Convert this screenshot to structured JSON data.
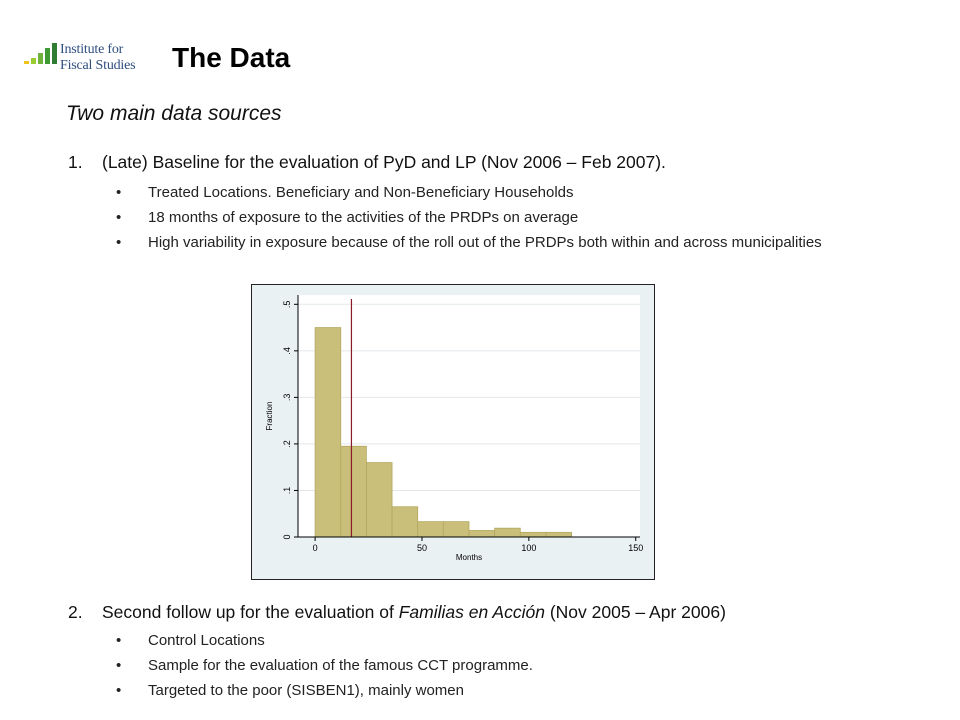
{
  "logo": {
    "line1": "Institute for",
    "line2": "Fiscal Studies",
    "bar_colors": [
      "#f0c419",
      "#9acd32",
      "#6fb33c",
      "#3f9a34",
      "#2e7d32"
    ]
  },
  "title": "The Data",
  "subtitle": "Two main data sources",
  "items": [
    {
      "number": "1.",
      "text": "(Late) Baseline for the evaluation of PyD and LP (Nov 2006 – Feb 2007).",
      "bullets": [
        "Treated Locations. Beneficiary and Non-Beneficiary  Households",
        "18 months of exposure to the activities of the PRDPs on average",
        "High variability in exposure because of the roll out of the PRDPs both within and across municipalities"
      ]
    },
    {
      "number": "2.",
      "text_before": "Second follow up for the evaluation of ",
      "text_italic": "Familias en Acción",
      "text_after": " (Nov 2005 – Apr 2006)",
      "bullets": [
        "Control Locations",
        "Sample for the evaluation of the famous CCT programme.",
        "Targeted to the poor (SISBEN1), mainly women"
      ]
    }
  ],
  "chart_data": {
    "type": "bar",
    "xlabel": "Months",
    "ylabel": "Fraction",
    "xlim": [
      -8,
      152
    ],
    "ylim": [
      0,
      0.52
    ],
    "x_ticks": [
      0,
      50,
      100,
      150
    ],
    "y_ticks": [
      0,
      0.1,
      0.2,
      0.3,
      0.4,
      0.5
    ],
    "y_tick_labels": [
      "0",
      ".1",
      ".2",
      ".3",
      ".4",
      ".5"
    ],
    "bin_width": 12,
    "bins_start": [
      0,
      12,
      24,
      36,
      48,
      60,
      72,
      84,
      96,
      108
    ],
    "values": [
      0.45,
      0.195,
      0.16,
      0.065,
      0.033,
      0.033,
      0.014,
      0.019,
      0.01,
      0.01
    ],
    "reference_line_x": 17,
    "grid": true,
    "bar_color": "#c9bf7a",
    "bar_edge": "#b3a860",
    "line_color": "#8b1a2b",
    "plot_bg": "#ffffff",
    "outer_bg": "#eaf1f3"
  }
}
